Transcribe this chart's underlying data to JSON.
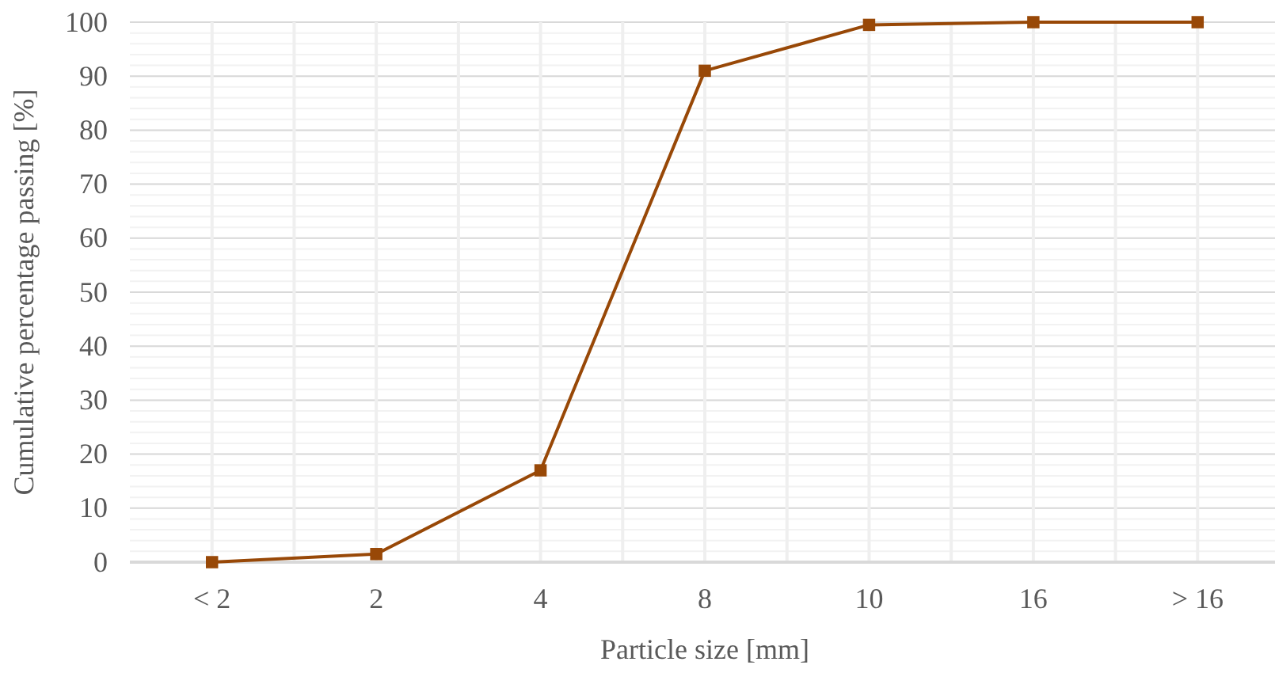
{
  "chart_data": {
    "type": "line",
    "xlabel": "Particle size [mm]",
    "ylabel": "Cumulative percentage passing [%]",
    "categories": [
      "< 2",
      "2",
      "4",
      "8",
      "10",
      "16",
      "> 16"
    ],
    "series": [
      {
        "color": "#984807",
        "values": [
          0,
          1.5,
          17,
          91,
          99.5,
          100,
          100
        ]
      }
    ],
    "ylim": [
      0,
      100
    ],
    "yticks": [
      0,
      10,
      20,
      30,
      40,
      50,
      60,
      70,
      80,
      90,
      100
    ],
    "grid": true,
    "marker": "square",
    "line_style": "solid"
  }
}
